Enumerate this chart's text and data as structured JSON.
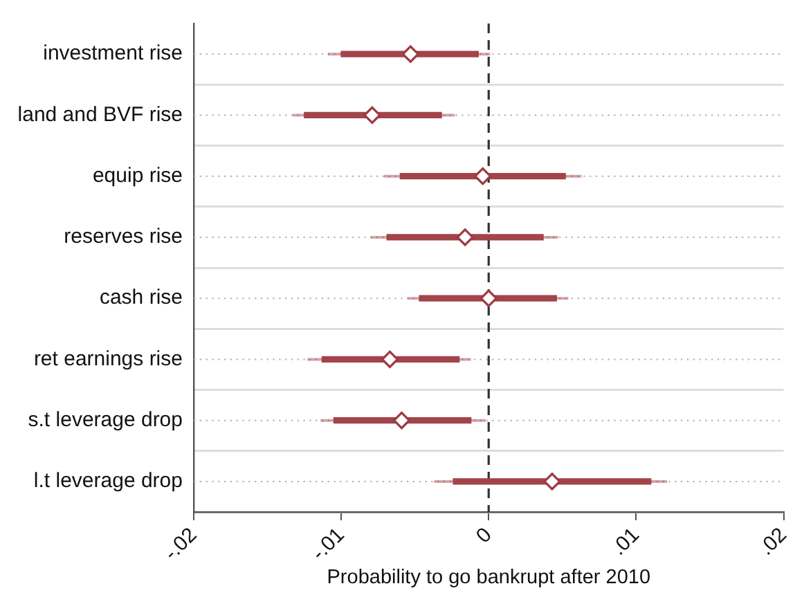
{
  "chart_data": {
    "type": "scatter",
    "orientation": "horizontal",
    "categories": [
      "investment rise",
      "land and BVF rise",
      "equip rise",
      "reserves rise",
      "cash rise",
      "ret earnings rise",
      "s.t leverage drop",
      "l.t leverage drop"
    ],
    "xlabel": "Probability to go bankrupt after 2010",
    "xlim": [
      -0.02,
      0.02
    ],
    "xticks": [
      {
        "value": -0.02,
        "label": "-.02"
      },
      {
        "value": -0.01,
        "label": "-.01"
      },
      0,
      {
        "value": 0.01,
        "label": ".01"
      },
      {
        "value": 0.02,
        "label": ".02"
      }
    ],
    "grid": "y",
    "legend": false,
    "ref_lines": [
      {
        "axis": "x",
        "value": 0,
        "color": "#333333",
        "line_style": "dashed"
      }
    ],
    "series": [
      {
        "color": "#9e3a43",
        "marker": "diamond",
        "values": [
          -0.0053,
          -0.0079,
          -0.0004,
          -0.0016,
          0.0,
          -0.0067,
          -0.0059,
          0.0043
        ],
        "errors": [
          [
            -0.0109,
            0.0001
          ],
          [
            -0.0133,
            -0.0023
          ],
          [
            -0.0071,
            0.0063
          ],
          [
            -0.008,
            0.0047
          ],
          [
            -0.0055,
            0.0054
          ],
          [
            -0.0123,
            -0.0012
          ],
          [
            -0.0114,
            -0.0002
          ],
          [
            -0.0037,
            0.0121
          ]
        ]
      },
      {
        "type": "bar",
        "color": "#a3434a",
        "base": [
          -0.01,
          -0.0125,
          -0.006,
          -0.0069,
          -0.0047,
          -0.0113,
          -0.0105,
          -0.0024
        ],
        "values": [
          0.0093,
          0.0093,
          0.0112,
          0.0106,
          0.0093,
          0.0093,
          0.0093,
          0.0134
        ]
      }
    ]
  }
}
